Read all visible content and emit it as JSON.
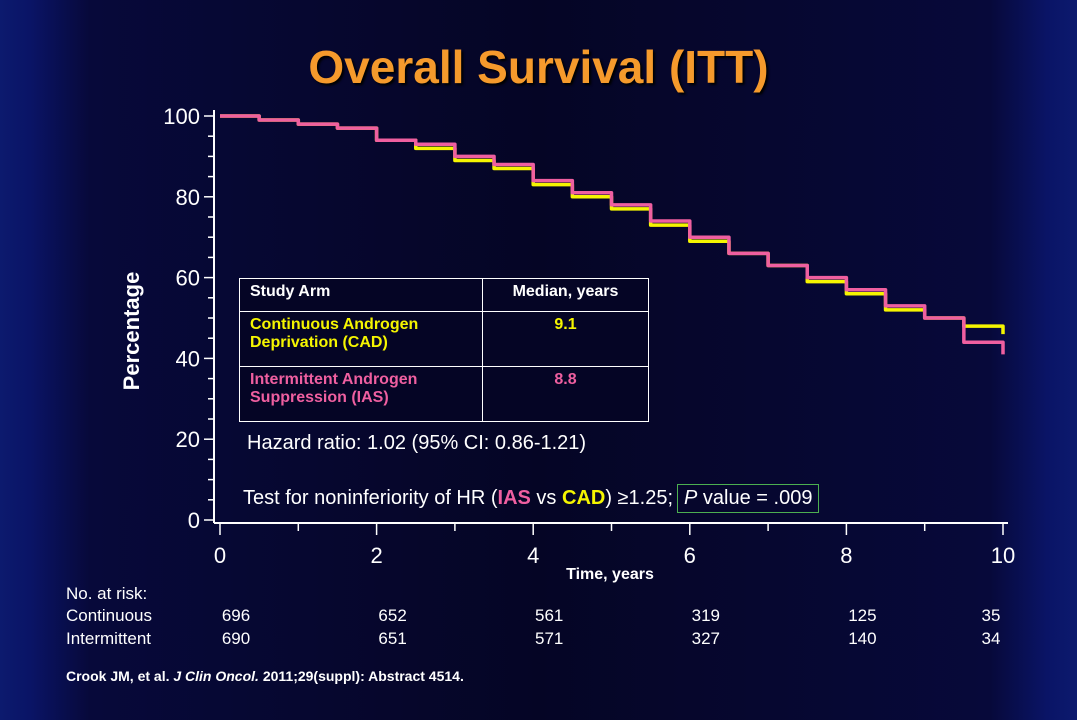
{
  "slide": {
    "title": "Overall Survival (ITT)",
    "hazard_ratio": "Hazard ratio: 1.02 (95% CI: 0.86-1.21)",
    "noninferiority": {
      "prefix": "Test for noninferiority of HR (",
      "ias": "IAS",
      "vs": " vs ",
      "cad": "CAD",
      "suffix": ") ≥1.25;",
      "p_label": "P",
      "p_value_text": " value = .009"
    },
    "legend_table": {
      "header_arm": "Study Arm",
      "header_median": "Median, years",
      "rows": [
        {
          "arm": "Continuous Androgen Deprivation (CAD)",
          "median": "9.1"
        },
        {
          "arm": "Intermittent Androgen Suppression (IAS)",
          "median": "8.8"
        }
      ]
    },
    "risk_table": {
      "heading": "No. at risk:",
      "rows": [
        {
          "name": "Continuous",
          "values": [
            "696",
            "652",
            "561",
            "319",
            "125",
            "35"
          ]
        },
        {
          "name": "Intermittent",
          "values": [
            "690",
            "651",
            "571",
            "327",
            "140",
            "34"
          ]
        }
      ]
    },
    "citation": {
      "authors": "Crook JM, et al. ",
      "journal": "J Clin Oncol.",
      "rest": " 2011;29(suppl): Abstract 4514."
    }
  },
  "chart_data": {
    "type": "line",
    "title": "Overall Survival (ITT)",
    "xlabel": "Time, years",
    "ylabel": "Percentage",
    "xlim": [
      0,
      10
    ],
    "ylim": [
      0,
      100
    ],
    "x_ticks": [
      0,
      2,
      4,
      6,
      8,
      10
    ],
    "y_ticks": [
      0,
      20,
      40,
      60,
      80,
      100
    ],
    "colors": {
      "CAD": "#f5f500",
      "IAS": "#ef5fa0",
      "axis": "#ffffff"
    },
    "series": [
      {
        "name": "CAD",
        "x": [
          0,
          0.5,
          1,
          1.5,
          2,
          2.5,
          3,
          3.5,
          4,
          4.5,
          5,
          5.5,
          6,
          6.5,
          7,
          7.5,
          8,
          8.5,
          9,
          9.5,
          10
        ],
        "y": [
          100,
          99,
          98,
          97,
          94,
          92,
          89,
          87,
          83,
          80,
          77,
          73,
          69,
          66,
          63,
          59,
          56,
          52,
          50,
          48,
          46
        ]
      },
      {
        "name": "IAS",
        "x": [
          0,
          0.5,
          1,
          1.5,
          2,
          2.5,
          3,
          3.5,
          4,
          4.5,
          5,
          5.5,
          6,
          6.5,
          7,
          7.5,
          8,
          8.5,
          9,
          9.5,
          10
        ],
        "y": [
          100,
          99,
          98,
          97,
          94,
          93,
          90,
          88,
          84,
          81,
          78,
          74,
          70,
          66,
          63,
          60,
          57,
          53,
          50,
          44,
          41
        ]
      }
    ]
  }
}
